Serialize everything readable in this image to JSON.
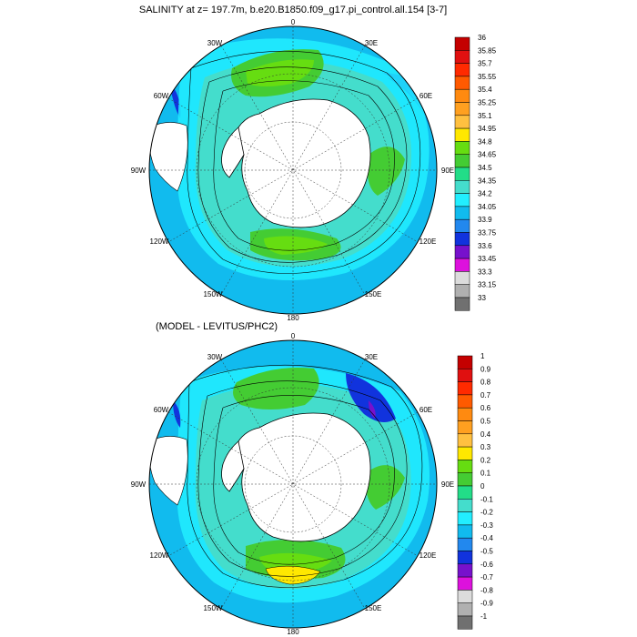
{
  "map1": {
    "title": "SALINITY at z= 197.7m, b.e20.B1850.f09_g17.pi_control.all.154 [3-7]",
    "lon_labels": [
      "0",
      "30E",
      "60E",
      "90E",
      "120E",
      "150E",
      "180",
      "150W",
      "120W",
      "90W",
      "60W",
      "30W"
    ],
    "colorbar": {
      "labels": [
        "36",
        "35.85",
        "35.7",
        "35.55",
        "35.4",
        "35.25",
        "35.1",
        "34.95",
        "34.8",
        "34.65",
        "34.5",
        "34.35",
        "34.2",
        "34.05",
        "33.9",
        "33.75",
        "33.6",
        "33.45",
        "33.3",
        "33.15",
        "33"
      ],
      "colors": [
        "#c40000",
        "#e01010",
        "#ff2a00",
        "#ff5a00",
        "#ff8a10",
        "#ffa020",
        "#ffc040",
        "#ffe800",
        "#66dd11",
        "#44cc33",
        "#22dd88",
        "#44ddcc",
        "#22eeff",
        "#11bbee",
        "#2288ee",
        "#1133dd",
        "#7711cc",
        "#dd11dd",
        "#dcdcdc",
        "#b0b0b0",
        "#707070"
      ]
    }
  },
  "map2": {
    "title": "(MODEL - LEVITUS/PHC2)",
    "lon_labels": [
      "0",
      "30E",
      "60E",
      "90E",
      "120E",
      "150E",
      "180",
      "150W",
      "120W",
      "90W",
      "60W",
      "30W"
    ],
    "colorbar": {
      "labels": [
        "1",
        "0.9",
        "0.8",
        "0.7",
        "0.6",
        "0.5",
        "0.4",
        "0.3",
        "0.2",
        "0.1",
        "0",
        "-0.1",
        "-0.2",
        "-0.3",
        "-0.4",
        "-0.5",
        "-0.6",
        "-0.7",
        "-0.8",
        "-0.9",
        "-1"
      ],
      "colors": [
        "#c40000",
        "#e01010",
        "#ff2a00",
        "#ff5a00",
        "#ff8a10",
        "#ffa020",
        "#ffc040",
        "#ffe800",
        "#66dd11",
        "#44cc33",
        "#22dd88",
        "#44ddcc",
        "#22eeff",
        "#11bbee",
        "#2288ee",
        "#1133dd",
        "#7711cc",
        "#dd11dd",
        "#dcdcdc",
        "#b0b0b0",
        "#707070"
      ]
    }
  }
}
